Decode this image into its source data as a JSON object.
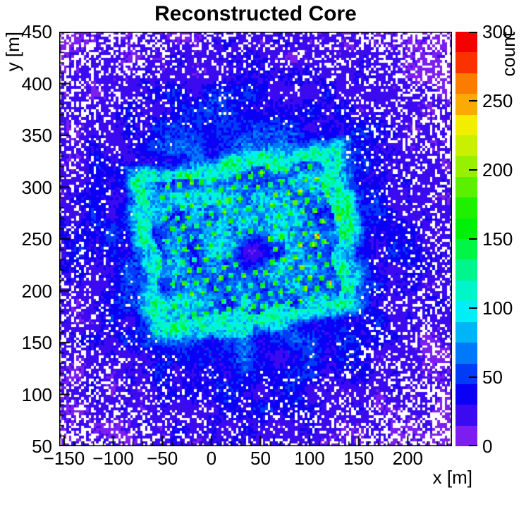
{
  "title": "Reconstructed Core",
  "axes": {
    "x": {
      "title": "x [m]",
      "range": [
        -155,
        245
      ],
      "minor_step": 10,
      "ticks": [
        {
          "v": -150,
          "label": "−150"
        },
        {
          "v": -100,
          "label": "−100"
        },
        {
          "v": -50,
          "label": "−50"
        },
        {
          "v": 0,
          "label": "0"
        },
        {
          "v": 50,
          "label": "50"
        },
        {
          "v": 100,
          "label": "100"
        },
        {
          "v": 150,
          "label": "150"
        },
        {
          "v": 200,
          "label": "200"
        }
      ]
    },
    "y": {
      "title": "y [m]",
      "range": [
        50,
        450
      ],
      "minor_step": 10,
      "ticks": [
        {
          "v": 50,
          "label": "50"
        },
        {
          "v": 100,
          "label": "100"
        },
        {
          "v": 150,
          "label": "150"
        },
        {
          "v": 200,
          "label": "200"
        },
        {
          "v": 250,
          "label": "250"
        },
        {
          "v": 300,
          "label": "300"
        },
        {
          "v": 350,
          "label": "350"
        },
        {
          "v": 400,
          "label": "400"
        },
        {
          "v": 450,
          "label": "450"
        }
      ]
    },
    "z": {
      "title": "count",
      "range": [
        0,
        300
      ],
      "ticks": [
        {
          "v": 0,
          "label": "0"
        },
        {
          "v": 50,
          "label": "50"
        },
        {
          "v": 100,
          "label": "100"
        },
        {
          "v": 150,
          "label": "150"
        },
        {
          "v": 200,
          "label": "200"
        },
        {
          "v": 250,
          "label": "250"
        },
        {
          "v": 300,
          "label": "300"
        }
      ]
    }
  },
  "chart_data": {
    "type": "heatmap",
    "title": "Reconstructed Core",
    "xlabel": "x [m]",
    "ylabel": "y [m]",
    "zlabel": "count",
    "x_range": [
      -155,
      245
    ],
    "y_range": [
      50,
      450
    ],
    "z_range": [
      0,
      300
    ],
    "n_bins_x": 160,
    "n_bins_y": 160,
    "color_levels": 20,
    "level_step_counts": 15,
    "palette_20": [
      "#7d1ef0",
      "#3c0af0",
      "#0a00f5",
      "#003cf8",
      "#0078fa",
      "#00b4f8",
      "#00eef5",
      "#00f5c8",
      "#00f58c",
      "#00f546",
      "#00f00a",
      "#1ef000",
      "#5af000",
      "#96f000",
      "#c8f000",
      "#f2ee00",
      "#faaa00",
      "#fa7d00",
      "#fa3200",
      "#f50000"
    ],
    "description": "2D histogram of reconstructed shower-core positions. Sparse violet background (≈5–15 counts) with white empty bins growing denser toward the frame edges; a smooth blue halo (≈20–60 counts) surrounds a tilted square detector-array footprint (x ≈ −60…130 m, y ≈ 175…320 m) whose rim is bright cyan (≈80–140 counts). Inside, a hexagonal grid of ≈180 green-cyan hot spots (spacing ≈12 m, ≈130–210 counts) marks detector positions; a low-count void sits near (45, 237) and a few near-red bins (≈220–290 counts) appear along the right edge of the array.",
    "render_params": {
      "seed": 20240917,
      "bin_size": 2.5,
      "bg": {
        "base": 7,
        "amp": 55,
        "sigma": 175
      },
      "empty": {
        "r0": 115,
        "rs": 330,
        "max": 0.66
      },
      "array": {
        "center": [
          35,
          247
        ],
        "half_u": 97,
        "half_v": 73,
        "rot_deg": 7,
        "edge_wobble": 0.08,
        "interior_base": 40,
        "interior_amp": 58,
        "rim_lo": 0.92,
        "rim_hi": 1.06,
        "rim_base": 82,
        "rim_amp": 58,
        "glow_amp": 62,
        "glow_width": 0.1
      },
      "dots": {
        "spacing": 12.2,
        "row_factor": 0.866,
        "radius": 2.9,
        "v_min": 132,
        "v_max": 212,
        "s_max": 0.88,
        "right_boost": 22
      },
      "hole": {
        "x": 45,
        "y": 237,
        "r": 11.5,
        "depth": 0.74,
        "dot_excl_r": 17
      },
      "hot_spots": [
        {
          "x": 108,
          "y": 253,
          "v": 292
        },
        {
          "x": 121,
          "y": 208,
          "v": 262
        },
        {
          "x": 130,
          "y": 270,
          "v": 228
        },
        {
          "x": 119,
          "y": 292,
          "v": 215
        },
        {
          "x": -22,
          "y": 310,
          "v": 205
        },
        {
          "x": 58,
          "y": 320,
          "v": 205
        }
      ],
      "jitter": 0.5,
      "noise_scales": {
        "mottle": 17,
        "fine": 6.5,
        "wobble": 23
      }
    }
  }
}
